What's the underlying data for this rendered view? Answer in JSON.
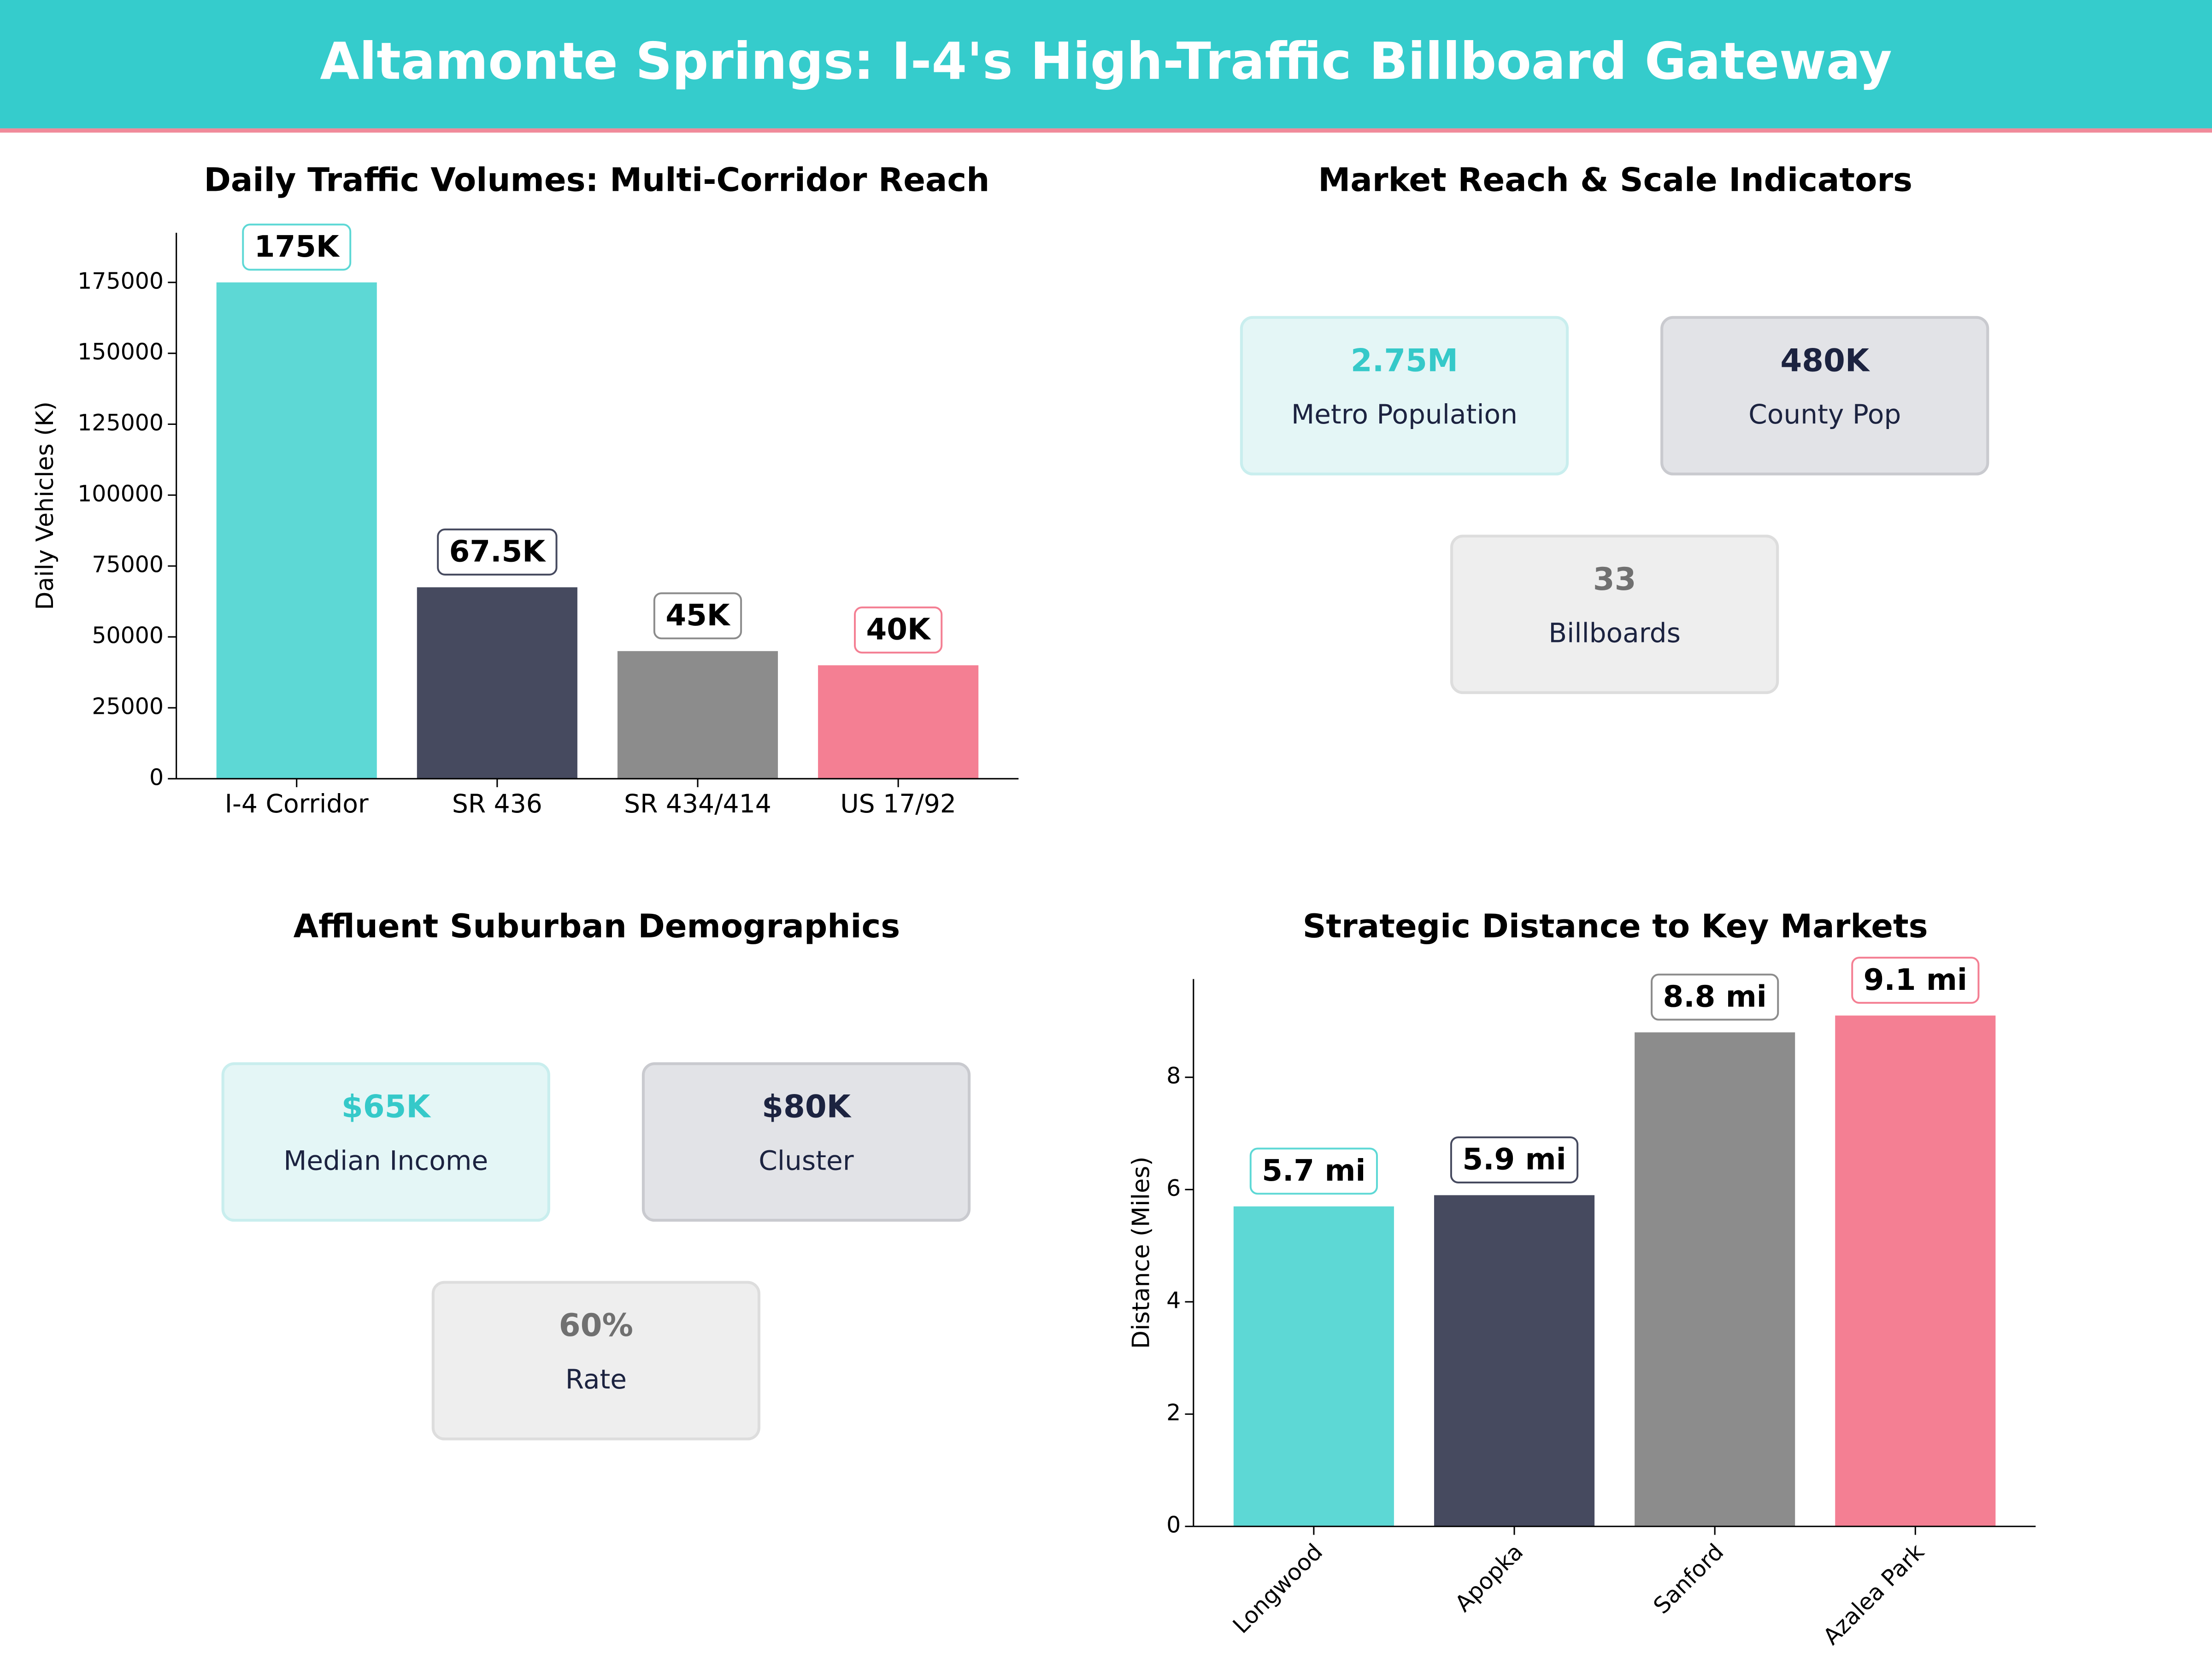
{
  "title": "Altamonte Springs: I-4's High-Traffic Billboard Gateway",
  "chart_data": [
    {
      "type": "bar",
      "title": "Daily Traffic Volumes: Multi-Corridor Reach",
      "y_label": "Daily Vehicles (K)",
      "categories": [
        "I-4 Corridor",
        "SR 436",
        "SR 434/414",
        "US 17/92"
      ],
      "values": [
        175000,
        67500,
        45000,
        40000
      ],
      "value_labels": [
        "175K",
        "67.5K",
        "45K",
        "40K"
      ],
      "colors": [
        "#5dd8d5",
        "#464a5f",
        "#8c8c8c",
        "#f47f93"
      ],
      "ylim": [
        0,
        192500
      ],
      "yticks": [
        0,
        25000,
        50000,
        75000,
        100000,
        125000,
        150000,
        175000
      ]
    },
    {
      "type": "cards",
      "title": "Market Reach & Scale Indicators",
      "cards": [
        {
          "value": "2.75M",
          "label": "Metro Population",
          "color": "#35c9c9"
        },
        {
          "value": "480K",
          "label": "County Pop",
          "color": "#1c2340"
        },
        {
          "value": "33",
          "label": "Billboards",
          "color": "#707070"
        }
      ]
    },
    {
      "type": "cards",
      "title": "Affluent Suburban Demographics",
      "cards": [
        {
          "value": "$65K",
          "label": "Median Income",
          "color": "#35c9c9"
        },
        {
          "value": "$80K",
          "label": "Cluster",
          "color": "#1c2340"
        },
        {
          "value": "60%",
          "label": "Rate",
          "color": "#707070"
        }
      ]
    },
    {
      "type": "bar",
      "title": "Strategic Distance to Key Markets",
      "y_label": "Distance (Miles)",
      "categories": [
        "Longwood",
        "Apopka",
        "Sanford",
        "Azalea Park"
      ],
      "values": [
        5.7,
        5.9,
        8.8,
        9.1
      ],
      "value_labels": [
        "5.7 mi",
        "5.9 mi",
        "8.8 mi",
        "9.1 mi"
      ],
      "colors": [
        "#5dd8d5",
        "#464a5f",
        "#8c8c8c",
        "#f47f93"
      ],
      "ylim": [
        0,
        9.75
      ],
      "yticks": [
        0,
        2,
        4,
        6,
        8
      ],
      "rotate_labels": true
    }
  ]
}
